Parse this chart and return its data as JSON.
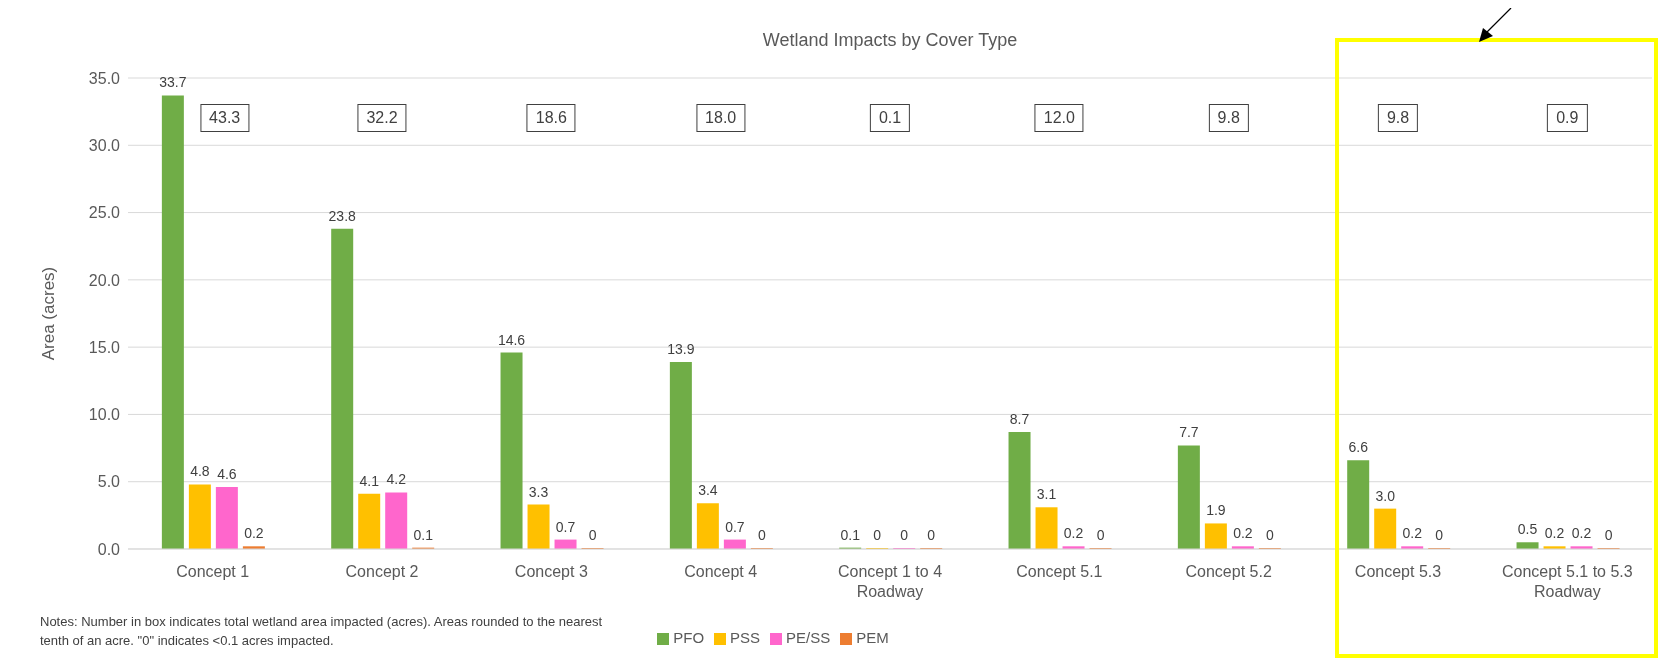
{
  "chart_data": {
    "type": "bar",
    "title": "Wetland Impacts by Cover Type",
    "ylabel": "Area (acres)",
    "categories": [
      "Concept 1",
      "Concept 2",
      "Concept 3",
      "Concept 4",
      "Concept 1 to 4 Roadway",
      "Concept 5.1",
      "Concept 5.2",
      "Concept 5.3",
      "Concept 5.1 to 5.3 Roadway"
    ],
    "series": [
      {
        "name": "PFO",
        "color": "#70ad47",
        "values": [
          33.7,
          23.8,
          14.6,
          13.9,
          0.1,
          8.7,
          7.7,
          6.6,
          0.5
        ],
        "value_labels": [
          "33.7",
          "23.8",
          "14.6",
          "13.9",
          "0.1",
          "8.7",
          "7.7",
          "6.6",
          "0.5"
        ]
      },
      {
        "name": "PSS",
        "color": "#ffc000",
        "values": [
          4.8,
          4.1,
          3.3,
          3.4,
          0,
          3.1,
          1.9,
          3.0,
          0.2
        ],
        "value_labels": [
          "4.8",
          "4.1",
          "3.3",
          "3.4",
          "0",
          "3.1",
          "1.9",
          "3.0",
          "0.2"
        ]
      },
      {
        "name": "PE/SS",
        "color": "#ff66cc",
        "values": [
          4.6,
          4.2,
          0.7,
          0.7,
          0,
          0.2,
          0.2,
          0.2,
          0.2
        ],
        "value_labels": [
          "4.6",
          "4.2",
          "0.7",
          "0.7",
          "0",
          "0.2",
          "0.2",
          "0.2",
          "0.2"
        ]
      },
      {
        "name": "PEM",
        "color": "#ed7d31",
        "values": [
          0.2,
          0.1,
          0,
          0,
          0,
          0,
          0,
          0,
          0
        ],
        "value_labels": [
          "0.2",
          "0.1",
          "0",
          "0",
          "0",
          "0",
          "0",
          "0",
          "0"
        ]
      }
    ],
    "ylim": [
      0,
      35
    ],
    "yticks": [
      {
        "value": 0,
        "label": "0.0"
      },
      {
        "value": 5,
        "label": "5.0"
      },
      {
        "value": 10,
        "label": "10.0"
      },
      {
        "value": 15,
        "label": "15.0"
      },
      {
        "value": 20,
        "label": "20.0"
      },
      {
        "value": 25,
        "label": "25.0"
      },
      {
        "value": 30,
        "label": "30.0"
      },
      {
        "value": 35,
        "label": "35.0"
      }
    ],
    "grid": "y",
    "legend": "bottom",
    "annotations": [
      "43.3",
      "32.2",
      "18.6",
      "18.0",
      "0.1",
      "12.0",
      "9.8",
      "9.8",
      "0.9",
      "Notes: Number in box indicates total wetland area impacted (acres). Areas rounded to the nearest tenth of an acre. \"0\" indicates <0.1 acres impacted."
    ]
  }
}
